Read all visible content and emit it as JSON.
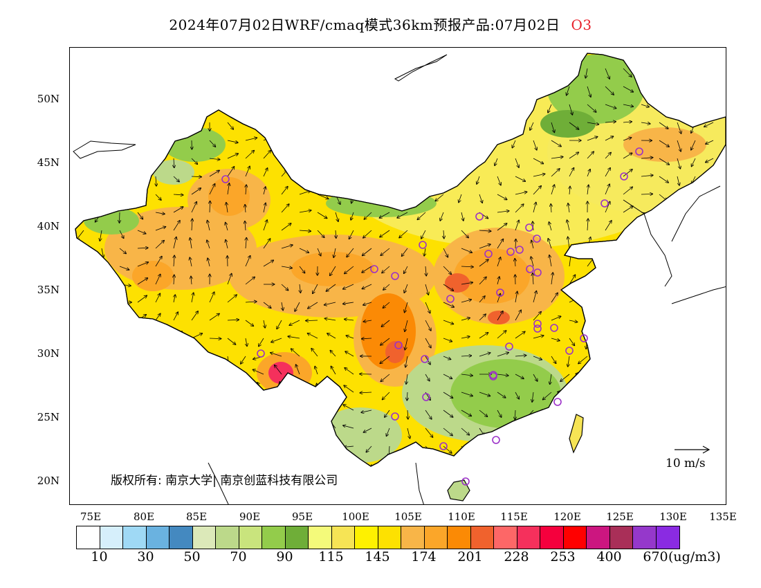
{
  "title": {
    "main": "2024年07月02日WRF/cmaq模式36km预报产品:07月02日",
    "species": "O3",
    "species_color": "#e8202a"
  },
  "map": {
    "lat_labels": [
      "50N",
      "45N",
      "40N",
      "35N",
      "30N",
      "25N",
      "20N"
    ],
    "lon_labels": [
      "75E",
      "80E",
      "85E",
      "90E",
      "95E",
      "100E",
      "105E",
      "110E",
      "115E",
      "120E",
      "125E",
      "130E",
      "135E"
    ],
    "copyright": "版权所有: 南京大学| 南京创蓝科技有限公司",
    "wind_reference": "10 m/s"
  },
  "colorbar": {
    "colors": [
      "#ffffff",
      "#d6effb",
      "#9fd9f5",
      "#6ab2e0",
      "#4489c0",
      "#dce9b9",
      "#bcd98a",
      "#c9e47d",
      "#93cc4b",
      "#6fae38",
      "#f4fa7a",
      "#f6e455",
      "#fef100",
      "#fde101",
      "#f8b548",
      "#fba629",
      "#fb8a05",
      "#f0622d",
      "#fd6767",
      "#f5305c",
      "#f5003d",
      "#ff0000",
      "#cc1680",
      "#a92f58",
      "#9538cb",
      "#8a2be2"
    ],
    "labels": [
      "10",
      "30",
      "50",
      "70",
      "90",
      "115",
      "145",
      "174",
      "201",
      "228",
      "253",
      "400",
      "670"
    ],
    "unit": "(ug/m3)"
  }
}
